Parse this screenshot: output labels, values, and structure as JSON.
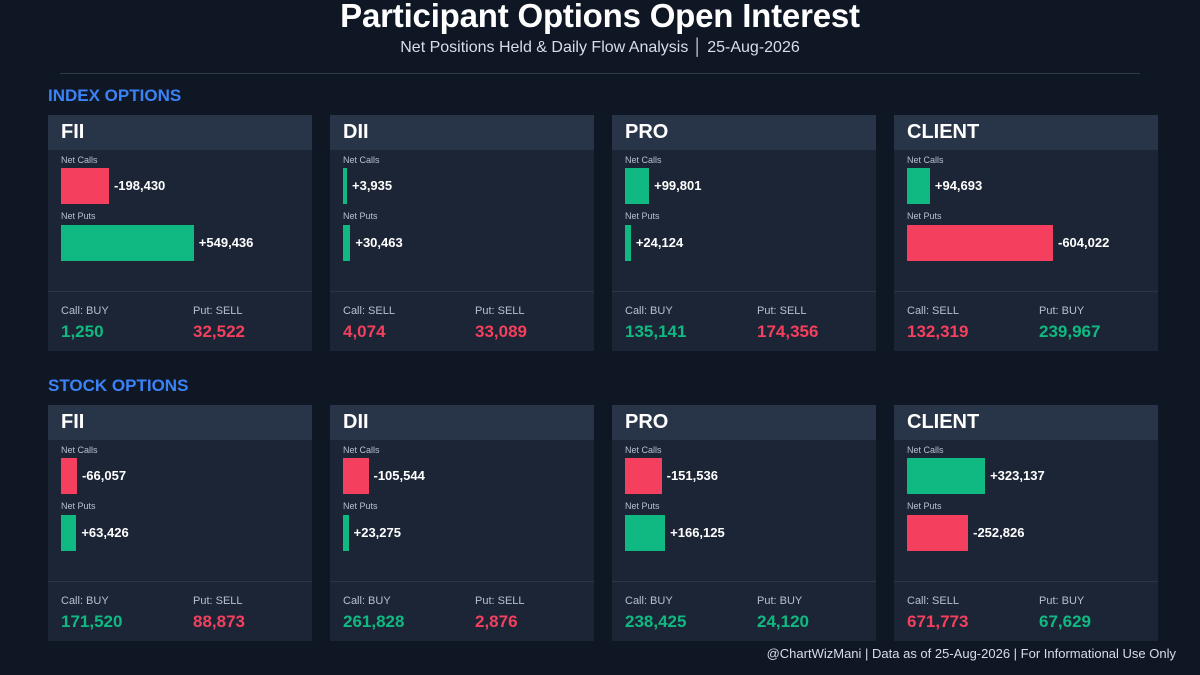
{
  "header": {
    "title": "Participant Options Open Interest",
    "subtitle": "Net Positions Held & Daily Flow Analysis  │  25-Aug-2026"
  },
  "footer": "@ChartWizMani | Data as of 25-Aug-2026 | For Informational Use Only",
  "colors": {
    "positive": "#10b981",
    "negative": "#f43f5e",
    "accent": "#3b82f6"
  },
  "chart_data": {
    "type": "bar",
    "labels": {
      "calls": "Net Calls",
      "puts": "Net Puts"
    },
    "sections": [
      {
        "label": "INDEX OPTIONS",
        "cards": [
          {
            "name": "FII",
            "net_calls": -198430,
            "net_calls_label": "-198,430",
            "net_puts": 549436,
            "net_puts_label": "+549,436",
            "call_flow_label": "Call: BUY",
            "call_flow_value": "1,250",
            "call_flow_sign": "positive",
            "put_flow_label": "Put: SELL",
            "put_flow_value": "32,522",
            "put_flow_sign": "negative"
          },
          {
            "name": "DII",
            "net_calls": 3935,
            "net_calls_label": "+3,935",
            "net_puts": 30463,
            "net_puts_label": "+30,463",
            "call_flow_label": "Call: SELL",
            "call_flow_value": "4,074",
            "call_flow_sign": "negative",
            "put_flow_label": "Put: SELL",
            "put_flow_value": "33,089",
            "put_flow_sign": "negative"
          },
          {
            "name": "PRO",
            "net_calls": 99801,
            "net_calls_label": "+99,801",
            "net_puts": 24124,
            "net_puts_label": "+24,124",
            "call_flow_label": "Call: BUY",
            "call_flow_value": "135,141",
            "call_flow_sign": "positive",
            "put_flow_label": "Put: SELL",
            "put_flow_value": "174,356",
            "put_flow_sign": "negative"
          },
          {
            "name": "CLIENT",
            "net_calls": 94693,
            "net_calls_label": "+94,693",
            "net_puts": -604022,
            "net_puts_label": "-604,022",
            "call_flow_label": "Call: SELL",
            "call_flow_value": "132,319",
            "call_flow_sign": "negative",
            "put_flow_label": "Put: BUY",
            "put_flow_value": "239,967",
            "put_flow_sign": "positive"
          }
        ]
      },
      {
        "label": "STOCK OPTIONS",
        "cards": [
          {
            "name": "FII",
            "net_calls": -66057,
            "net_calls_label": "-66,057",
            "net_puts": 63426,
            "net_puts_label": "+63,426",
            "call_flow_label": "Call: BUY",
            "call_flow_value": "171,520",
            "call_flow_sign": "positive",
            "put_flow_label": "Put: SELL",
            "put_flow_value": "88,873",
            "put_flow_sign": "negative"
          },
          {
            "name": "DII",
            "net_calls": -105544,
            "net_calls_label": "-105,544",
            "net_puts": 23275,
            "net_puts_label": "+23,275",
            "call_flow_label": "Call: BUY",
            "call_flow_value": "261,828",
            "call_flow_sign": "positive",
            "put_flow_label": "Put: SELL",
            "put_flow_value": "2,876",
            "put_flow_sign": "negative"
          },
          {
            "name": "PRO",
            "net_calls": -151536,
            "net_calls_label": "-151,536",
            "net_puts": 166125,
            "net_puts_label": "+166,125",
            "call_flow_label": "Call: BUY",
            "call_flow_value": "238,425",
            "call_flow_sign": "positive",
            "put_flow_label": "Put: BUY",
            "put_flow_value": "24,120",
            "put_flow_sign": "positive"
          },
          {
            "name": "CLIENT",
            "net_calls": 323137,
            "net_calls_label": "+323,137",
            "net_puts": -252826,
            "net_puts_label": "-252,826",
            "call_flow_label": "Call: SELL",
            "call_flow_value": "671,773",
            "call_flow_sign": "negative",
            "put_flow_label": "Put: BUY",
            "put_flow_value": "67,629",
            "put_flow_sign": "positive"
          }
        ]
      }
    ]
  }
}
